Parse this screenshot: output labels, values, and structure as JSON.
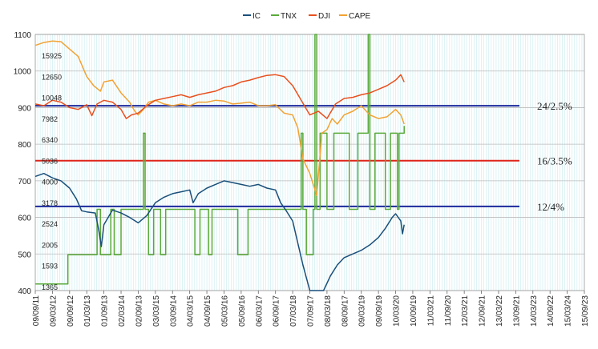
{
  "chart_data": {
    "type": "line",
    "grid": true,
    "legend_position": "top-center",
    "y_left": {
      "min": 400,
      "max": 1100,
      "ticks": [
        400,
        500,
        600,
        700,
        800,
        900,
        1000,
        1100
      ]
    },
    "y_inner_labels": [
      "1365",
      "1593",
      "2005",
      "2524",
      "3178",
      "4000",
      "5036",
      "6340",
      "7982",
      "10048",
      "12650",
      "15925"
    ],
    "x": [
      "09/09/11",
      "09/03/12",
      "09/09/12",
      "01/03/13",
      "01/09/13",
      "02/03/14",
      "02/09/13",
      "03/03/15",
      "03/09/14",
      "04/03/15",
      "04/09/15",
      "05/03/16",
      "05/09/16",
      "06/03/17",
      "06/09/17",
      "07/03/18",
      "07/09/17",
      "08/03/18",
      "08/09/17",
      "09/03/19",
      "09/09/19",
      "10/03/20",
      "10/09/19",
      "11/03/21",
      "11/09/20",
      "12/03/21",
      "12/09/21",
      "13/03/22",
      "13/09/21",
      "14/03/23",
      "14/09/22",
      "15/03/24",
      "15/09/23"
    ],
    "legend": [
      "IC",
      "TNX",
      "DJI",
      "CAPE"
    ],
    "colors": {
      "IC": "#1a4f7a",
      "TNX": "#5aaa3a",
      "DJI": "#e8501e",
      "CAPE": "#f2a233",
      "grid": "#cfeef0",
      "blue_line": "#1c2a9c",
      "red_line": "#e0241a"
    },
    "series": [
      {
        "name": "IC",
        "values": [
          [
            0,
            712
          ],
          [
            0.5,
            720
          ],
          [
            1,
            708
          ],
          [
            1.5,
            700
          ],
          [
            2,
            680
          ],
          [
            2.4,
            650
          ],
          [
            2.7,
            618
          ],
          [
            3,
            615
          ],
          [
            3.5,
            612
          ],
          [
            3.7,
            565
          ],
          [
            3.85,
            520
          ],
          [
            4,
            580
          ],
          [
            4.5,
            620
          ],
          [
            5,
            612
          ],
          [
            5.5,
            600
          ],
          [
            6,
            585
          ],
          [
            6.5,
            605
          ],
          [
            7,
            640
          ],
          [
            7.5,
            655
          ],
          [
            8,
            665
          ],
          [
            8.5,
            670
          ],
          [
            9,
            675
          ],
          [
            9.2,
            640
          ],
          [
            9.5,
            665
          ],
          [
            10,
            680
          ],
          [
            10.5,
            690
          ],
          [
            11,
            700
          ],
          [
            11.5,
            695
          ],
          [
            12,
            690
          ],
          [
            12.5,
            685
          ],
          [
            13,
            690
          ],
          [
            13.5,
            680
          ],
          [
            14,
            675
          ],
          [
            14.3,
            640
          ],
          [
            14.6,
            620
          ],
          [
            15,
            590
          ],
          [
            15.3,
            530
          ],
          [
            15.6,
            470
          ],
          [
            16,
            400
          ],
          [
            16.8,
            400
          ],
          [
            17.2,
            440
          ],
          [
            17.6,
            470
          ],
          [
            18,
            490
          ],
          [
            18.5,
            500
          ],
          [
            19,
            510
          ],
          [
            19.5,
            525
          ],
          [
            20,
            545
          ],
          [
            20.4,
            570
          ],
          [
            20.8,
            600
          ],
          [
            21,
            610
          ],
          [
            21.3,
            590
          ],
          [
            21.4,
            555
          ],
          [
            21.5,
            580
          ]
        ]
      },
      {
        "name": "TNX",
        "values": [
          [
            0,
            418
          ],
          [
            1.9,
            418
          ],
          [
            1.9,
            498
          ],
          [
            3.6,
            498
          ],
          [
            3.6,
            622
          ],
          [
            3.8,
            622
          ],
          [
            3.8,
            498
          ],
          [
            4.4,
            498
          ],
          [
            4.4,
            622
          ],
          [
            4.6,
            622
          ],
          [
            4.6,
            498
          ],
          [
            5,
            498
          ],
          [
            5,
            622
          ],
          [
            6.3,
            622
          ],
          [
            6.3,
            830
          ],
          [
            6.4,
            830
          ],
          [
            6.4,
            622
          ],
          [
            6.6,
            622
          ],
          [
            6.6,
            498
          ],
          [
            6.9,
            498
          ],
          [
            6.9,
            622
          ],
          [
            7.3,
            622
          ],
          [
            7.3,
            498
          ],
          [
            7.6,
            498
          ],
          [
            7.6,
            622
          ],
          [
            9.3,
            622
          ],
          [
            9.3,
            498
          ],
          [
            9.6,
            498
          ],
          [
            9.6,
            622
          ],
          [
            10.1,
            622
          ],
          [
            10.1,
            498
          ],
          [
            10.3,
            498
          ],
          [
            10.3,
            622
          ],
          [
            11.8,
            622
          ],
          [
            11.8,
            498
          ],
          [
            12.4,
            498
          ],
          [
            12.4,
            622
          ],
          [
            15.5,
            622
          ],
          [
            15.5,
            830
          ],
          [
            15.6,
            830
          ],
          [
            15.6,
            622
          ],
          [
            15.8,
            622
          ],
          [
            15.8,
            498
          ],
          [
            16.2,
            498
          ],
          [
            16.2,
            622
          ],
          [
            16.3,
            622
          ],
          [
            16.3,
            1100
          ],
          [
            16.4,
            1100
          ],
          [
            16.4,
            622
          ],
          [
            16.6,
            622
          ],
          [
            16.6,
            830
          ],
          [
            17,
            830
          ],
          [
            17,
            622
          ],
          [
            17.4,
            622
          ],
          [
            17.4,
            830
          ],
          [
            18.3,
            830
          ],
          [
            18.3,
            622
          ],
          [
            18.8,
            622
          ],
          [
            18.8,
            830
          ],
          [
            19.4,
            830
          ],
          [
            19.4,
            1100
          ],
          [
            19.5,
            1100
          ],
          [
            19.5,
            622
          ],
          [
            19.8,
            622
          ],
          [
            19.8,
            830
          ],
          [
            20.4,
            830
          ],
          [
            20.4,
            622
          ],
          [
            20.7,
            622
          ],
          [
            20.7,
            830
          ],
          [
            21.1,
            830
          ],
          [
            21.1,
            622
          ],
          [
            21.2,
            622
          ],
          [
            21.2,
            830
          ],
          [
            21.5,
            830
          ],
          [
            21.5,
            850
          ]
        ]
      },
      {
        "name": "DJI",
        "values": [
          [
            0,
            910
          ],
          [
            0.5,
            905
          ],
          [
            1,
            920
          ],
          [
            1.5,
            915
          ],
          [
            2,
            900
          ],
          [
            2.5,
            895
          ],
          [
            3,
            908
          ],
          [
            3.3,
            878
          ],
          [
            3.6,
            910
          ],
          [
            4,
            920
          ],
          [
            4.5,
            915
          ],
          [
            5,
            895
          ],
          [
            5.3,
            870
          ],
          [
            5.6,
            880
          ],
          [
            6,
            885
          ],
          [
            6.5,
            905
          ],
          [
            7,
            920
          ],
          [
            7.5,
            925
          ],
          [
            8,
            930
          ],
          [
            8.5,
            935
          ],
          [
            9,
            928
          ],
          [
            9.5,
            935
          ],
          [
            10,
            940
          ],
          [
            10.5,
            945
          ],
          [
            11,
            955
          ],
          [
            11.5,
            960
          ],
          [
            12,
            970
          ],
          [
            12.5,
            975
          ],
          [
            13,
            982
          ],
          [
            13.5,
            988
          ],
          [
            14,
            990
          ],
          [
            14.5,
            985
          ],
          [
            15,
            960
          ],
          [
            15.5,
            920
          ],
          [
            16,
            880
          ],
          [
            16.5,
            890
          ],
          [
            17,
            870
          ],
          [
            17.5,
            910
          ],
          [
            18,
            925
          ],
          [
            18.5,
            928
          ],
          [
            19,
            935
          ],
          [
            19.5,
            940
          ],
          [
            20,
            950
          ],
          [
            20.5,
            960
          ],
          [
            21,
            975
          ],
          [
            21.3,
            990
          ],
          [
            21.5,
            970
          ]
        ]
      },
      {
        "name": "CAPE",
        "values": [
          [
            0,
            1070
          ],
          [
            0.5,
            1078
          ],
          [
            1,
            1082
          ],
          [
            1.5,
            1080
          ],
          [
            2,
            1060
          ],
          [
            2.5,
            1040
          ],
          [
            3,
            985
          ],
          [
            3.4,
            960
          ],
          [
            3.8,
            945
          ],
          [
            4,
            970
          ],
          [
            4.5,
            975
          ],
          [
            5,
            940
          ],
          [
            5.5,
            915
          ],
          [
            5.8,
            890
          ],
          [
            6,
            880
          ],
          [
            6.3,
            895
          ],
          [
            6.6,
            915
          ],
          [
            7,
            920
          ],
          [
            7.5,
            910
          ],
          [
            8,
            905
          ],
          [
            8.5,
            910
          ],
          [
            9,
            905
          ],
          [
            9.5,
            915
          ],
          [
            10,
            915
          ],
          [
            10.5,
            920
          ],
          [
            11,
            918
          ],
          [
            11.5,
            910
          ],
          [
            12,
            912
          ],
          [
            12.5,
            915
          ],
          [
            13,
            905
          ],
          [
            13.5,
            905
          ],
          [
            14,
            908
          ],
          [
            14.5,
            885
          ],
          [
            15,
            880
          ],
          [
            15.3,
            845
          ],
          [
            15.6,
            760
          ],
          [
            16,
            720
          ],
          [
            16.4,
            660
          ],
          [
            16.7,
            830
          ],
          [
            17,
            840
          ],
          [
            17.3,
            870
          ],
          [
            17.6,
            855
          ],
          [
            18,
            880
          ],
          [
            18.5,
            890
          ],
          [
            19,
            905
          ],
          [
            19.5,
            880
          ],
          [
            20,
            870
          ],
          [
            20.5,
            875
          ],
          [
            21,
            895
          ],
          [
            21.3,
            880
          ],
          [
            21.5,
            855
          ]
        ]
      }
    ],
    "reference_lines": [
      {
        "y": 905,
        "label": "24/2.5%",
        "color": "blue"
      },
      {
        "y": 755,
        "label": "16/3.5%",
        "color": "red"
      },
      {
        "y": 630,
        "label": "12/4%",
        "color": "blue"
      }
    ]
  }
}
